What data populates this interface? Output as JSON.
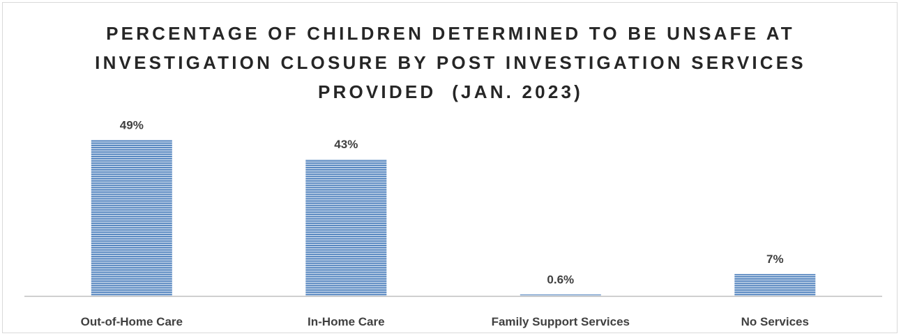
{
  "chart_data": {
    "type": "bar",
    "title_lines": [
      "PERCENTAGE OF CHILDREN DETERMINED TO BE UNSAFE AT",
      "INVESTIGATION CLOSURE BY POST INVESTIGATION SERVICES",
      "PROVIDED  (JAN. 2023)"
    ],
    "categories": [
      "Out-of-Home Care",
      "In-Home Care",
      "Family Support Services",
      "No Services"
    ],
    "values": [
      49,
      43,
      0.6,
      7
    ],
    "data_labels": [
      "49%",
      "43%",
      "0.6%",
      "7%"
    ],
    "ylim": [
      0,
      55
    ],
    "grid": false,
    "legend": "none",
    "colors": {
      "bar_fill": "#4f81bd",
      "bar_stripe": "#dce6f2",
      "axis": "#bfbfbf",
      "text": "#404040",
      "title": "#262626"
    }
  }
}
